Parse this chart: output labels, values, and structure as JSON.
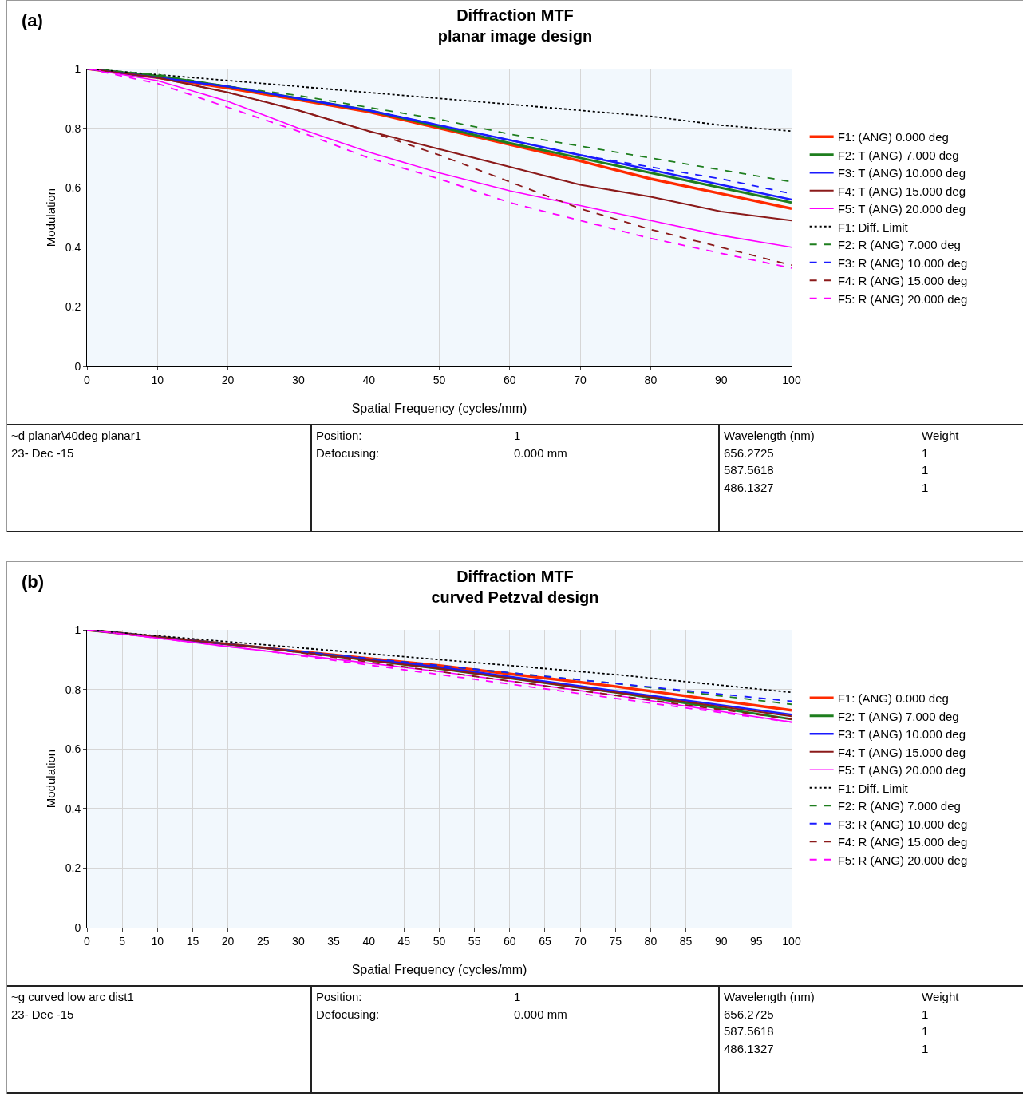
{
  "chart_data": [
    {
      "type": "line",
      "title": "Diffraction MTF",
      "subtitle": "planar image design",
      "xlabel": "Spatial Frequency (cycles/mm)",
      "ylabel": "Modulation",
      "x": [
        0,
        10,
        20,
        30,
        40,
        50,
        60,
        70,
        80,
        90,
        100
      ],
      "xlim": [
        0,
        100
      ],
      "xticks": [
        0,
        10,
        20,
        30,
        40,
        50,
        60,
        70,
        80,
        90,
        100
      ],
      "ylim": [
        0,
        1
      ],
      "yticks": [
        0,
        0.2,
        0.4,
        0.6,
        0.8,
        1
      ],
      "grid": true,
      "legend": "right",
      "series": [
        {
          "name": "F1: Diff. Limit",
          "color": "#000000",
          "line_style": "dotted",
          "values": [
            1,
            0.98,
            0.96,
            0.94,
            0.92,
            0.9,
            0.88,
            0.86,
            0.84,
            0.81,
            0.79
          ]
        },
        {
          "name": "F1: (ANG) 0.000 deg",
          "color": "#ff2a00",
          "line_style": "solid",
          "values": [
            1,
            0.97,
            0.935,
            0.895,
            0.855,
            0.8,
            0.745,
            0.69,
            0.63,
            0.58,
            0.53
          ]
        },
        {
          "name": "F2: T (ANG) 7.000 deg",
          "color": "#1e7e1e",
          "line_style": "solid",
          "values": [
            1,
            0.975,
            0.94,
            0.9,
            0.86,
            0.805,
            0.75,
            0.7,
            0.65,
            0.6,
            0.55
          ]
        },
        {
          "name": "F2: R (ANG) 7.000 deg",
          "color": "#1e7e1e",
          "line_style": "dashed",
          "values": [
            1,
            0.98,
            0.94,
            0.91,
            0.87,
            0.83,
            0.78,
            0.74,
            0.7,
            0.66,
            0.62
          ]
        },
        {
          "name": "F3: T (ANG) 10.000 deg",
          "color": "#1a1aff",
          "line_style": "solid",
          "values": [
            1,
            0.97,
            0.94,
            0.9,
            0.86,
            0.81,
            0.76,
            0.71,
            0.66,
            0.61,
            0.56
          ]
        },
        {
          "name": "F3: R (ANG) 10.000 deg",
          "color": "#1a1aff",
          "line_style": "dashed",
          "values": [
            1,
            0.97,
            0.94,
            0.9,
            0.86,
            0.81,
            0.76,
            0.71,
            0.67,
            0.63,
            0.58
          ]
        },
        {
          "name": "F4: T (ANG) 15.000 deg",
          "color": "#8b1a1a",
          "line_style": "solid",
          "values": [
            1,
            0.97,
            0.92,
            0.86,
            0.79,
            0.73,
            0.67,
            0.61,
            0.57,
            0.52,
            0.49
          ]
        },
        {
          "name": "F4: R (ANG) 15.000 deg",
          "color": "#8b1a1a",
          "line_style": "dashed",
          "values": [
            1,
            0.97,
            0.92,
            0.86,
            0.79,
            0.71,
            0.62,
            0.53,
            0.46,
            0.4,
            0.34
          ]
        },
        {
          "name": "F5: T (ANG) 20.000 deg",
          "color": "#ff00ff",
          "line_style": "solid",
          "values": [
            1,
            0.96,
            0.89,
            0.8,
            0.72,
            0.65,
            0.59,
            0.54,
            0.49,
            0.44,
            0.4
          ]
        },
        {
          "name": "F5: R (ANG) 20.000 deg",
          "color": "#ff00ff",
          "line_style": "dashed",
          "values": [
            1,
            0.95,
            0.87,
            0.79,
            0.7,
            0.63,
            0.55,
            0.49,
            0.43,
            0.38,
            0.33
          ]
        }
      ],
      "annotations": [
        "(a)",
        "~d planar\\40deg planar1",
        "23- Dec -15",
        "Position:",
        "1",
        "Defocusing:",
        "0.000 mm",
        "Wavelength (nm)",
        "Weight",
        "656.2725",
        "1",
        "587.5618",
        "1",
        "486.1327",
        "1"
      ]
    },
    {
      "type": "line",
      "title": "Diffraction MTF",
      "subtitle": "curved Petzval design",
      "xlabel": "Spatial Frequency (cycles/mm)",
      "ylabel": "Modulation",
      "x": [
        0,
        25,
        50,
        75,
        100
      ],
      "xlim": [
        0,
        100
      ],
      "xticks": [
        0,
        5,
        10,
        15,
        20,
        25,
        30,
        35,
        40,
        45,
        50,
        55,
        60,
        65,
        70,
        75,
        80,
        85,
        90,
        95,
        100
      ],
      "ylim": [
        0,
        1
      ],
      "yticks": [
        0,
        0.2,
        0.4,
        0.6,
        0.8,
        1
      ],
      "grid": true,
      "legend": "right",
      "series": [
        {
          "name": "F1: Diff. Limit",
          "color": "#000000",
          "line_style": "dotted",
          "values": [
            1,
            0.95,
            0.9,
            0.85,
            0.79
          ]
        },
        {
          "name": "F1: (ANG) 0.000 deg",
          "color": "#ff2a00",
          "line_style": "solid",
          "values": [
            1,
            0.94,
            0.88,
            0.81,
            0.73
          ]
        },
        {
          "name": "F2: T (ANG) 7.000 deg",
          "color": "#1e7e1e",
          "line_style": "solid",
          "values": [
            1,
            0.94,
            0.87,
            0.79,
            0.7
          ]
        },
        {
          "name": "F2: R (ANG) 7.000 deg",
          "color": "#1e7e1e",
          "line_style": "dashed",
          "values": [
            1,
            0.94,
            0.88,
            0.82,
            0.75
          ]
        },
        {
          "name": "F3: T (ANG) 10.000 deg",
          "color": "#1a1aff",
          "line_style": "solid",
          "values": [
            1,
            0.94,
            0.875,
            0.795,
            0.715
          ]
        },
        {
          "name": "F3: R (ANG) 10.000 deg",
          "color": "#1a1aff",
          "line_style": "dashed",
          "values": [
            1,
            0.94,
            0.88,
            0.82,
            0.76
          ]
        },
        {
          "name": "F4: T (ANG) 15.000 deg",
          "color": "#8b1a1a",
          "line_style": "solid",
          "values": [
            1,
            0.94,
            0.87,
            0.79,
            0.71
          ]
        },
        {
          "name": "F4: R (ANG) 15.000 deg",
          "color": "#8b1a1a",
          "line_style": "dashed",
          "values": [
            1,
            0.94,
            0.86,
            0.78,
            0.7
          ]
        },
        {
          "name": "F5: T (ANG) 20.000 deg",
          "color": "#ff00ff",
          "line_style": "solid",
          "values": [
            1,
            0.93,
            0.86,
            0.78,
            0.69
          ]
        },
        {
          "name": "F5: R (ANG) 20.000 deg",
          "color": "#ff00ff",
          "line_style": "dashed",
          "values": [
            1,
            0.93,
            0.85,
            0.77,
            0.69
          ]
        }
      ],
      "annotations": [
        "(b)",
        "~g curved low arc dist1",
        "23- Dec -15",
        "Position:",
        "1",
        "Defocusing:",
        "0.000 mm",
        "Wavelength (nm)",
        "Weight",
        "656.2725",
        "1",
        "587.5618",
        "1",
        "486.1327",
        "1"
      ]
    }
  ]
}
